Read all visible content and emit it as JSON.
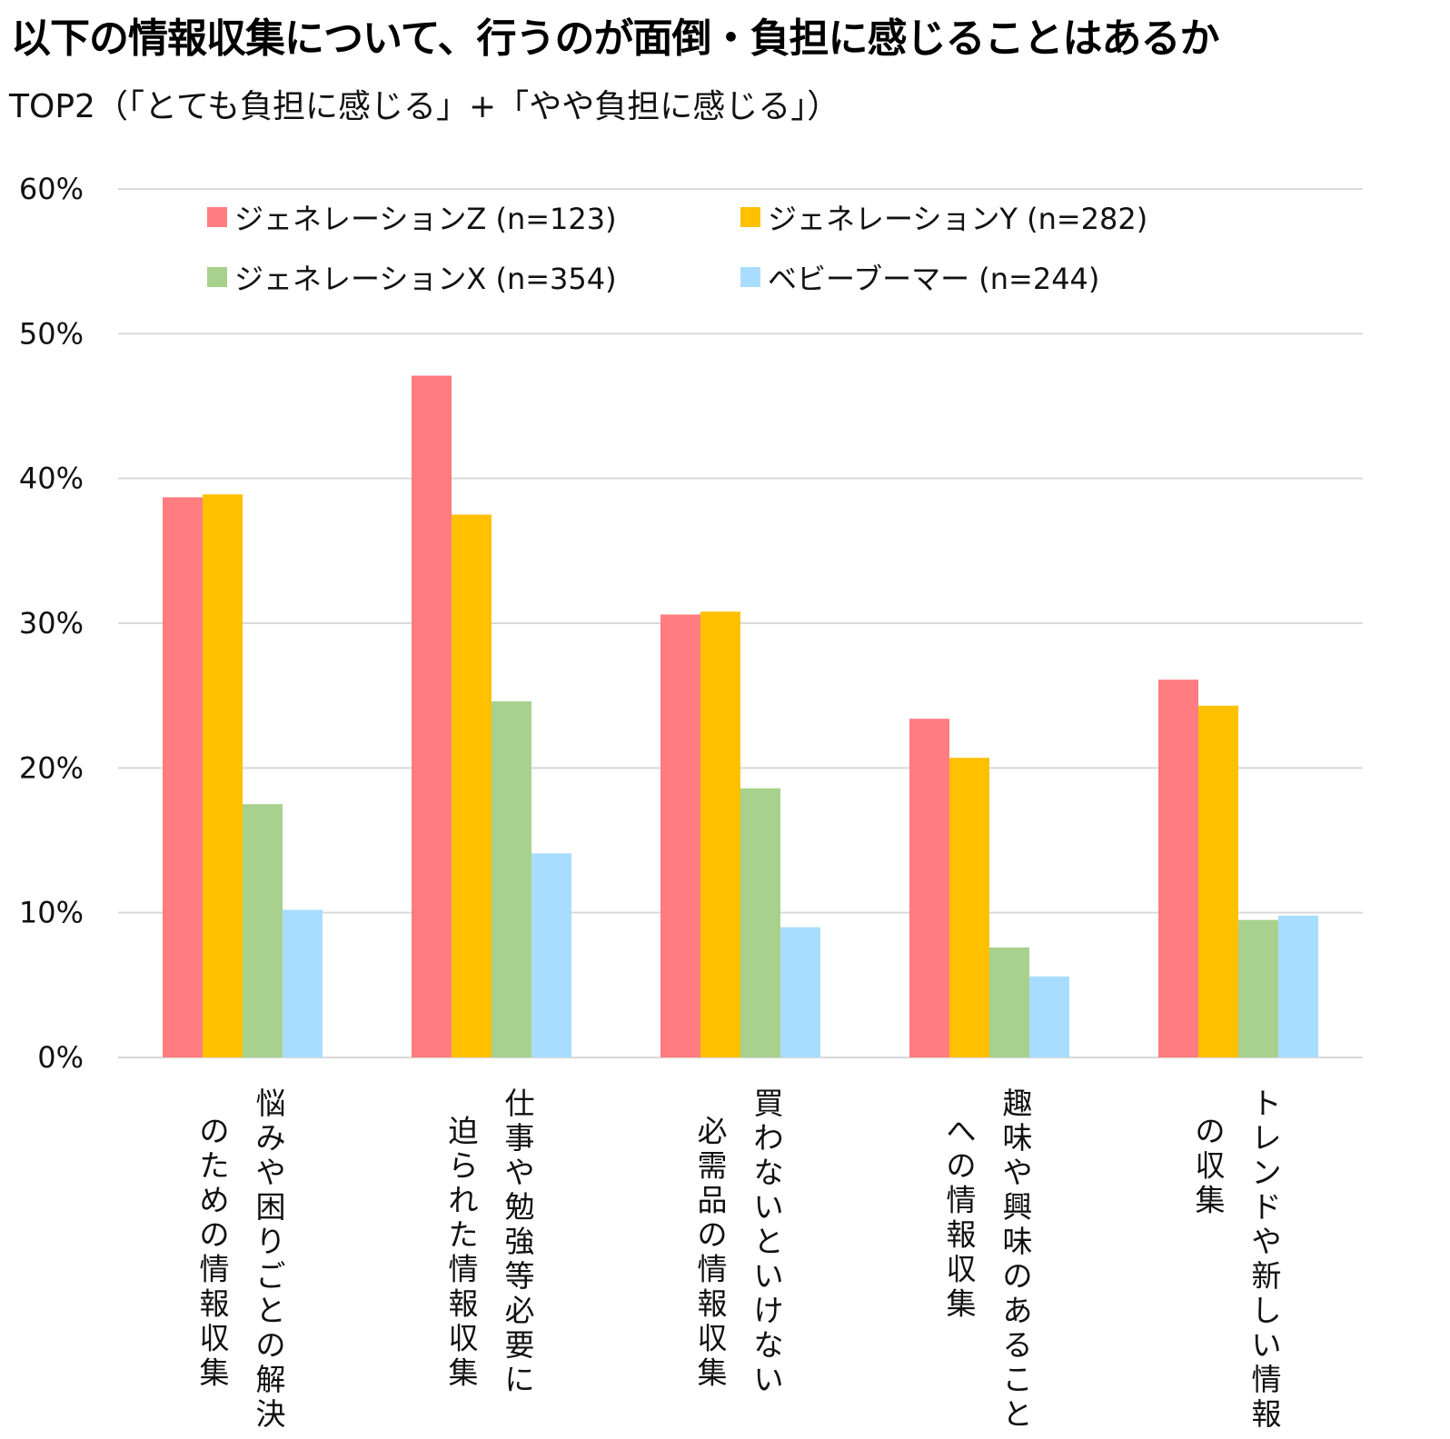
{
  "title": "以下の情報収集について、行うのが面倒・負担に感じることはあるか",
  "subtitle": "TOP2（「とても負担に感じる」+「やや負担に感じる」）",
  "chart_data": {
    "type": "bar",
    "title": "以下の情報収集について、行うのが面倒・負担に感じることはあるか",
    "subtitle": "TOP2（「とても負担に感じる」+「やや負担に感じる」）",
    "xlabel": "",
    "ylabel": "",
    "ylim": [
      0,
      60
    ],
    "yticks": [
      0,
      10,
      20,
      30,
      40,
      50,
      60
    ],
    "ytick_labels": [
      "0%",
      "10%",
      "20%",
      "30%",
      "40%",
      "50%",
      "60%"
    ],
    "grid": true,
    "legend_position": "top",
    "categories": [
      [
        "悩みや困りごとの解決",
        "のための情報収集"
      ],
      [
        "仕事や勉強等必要に",
        "迫られた情報収集"
      ],
      [
        "買わないといけない",
        "必需品の情報収集"
      ],
      [
        "趣味や興味のあること",
        "への情報収集"
      ],
      [
        "トレンドや新しい情報",
        "の収集"
      ]
    ],
    "series": [
      {
        "name": "ジェネレーションZ (n=123)",
        "color": "#FF7C80",
        "values": [
          38.7,
          47.1,
          30.6,
          23.4,
          26.1
        ]
      },
      {
        "name": "ジェネレーションY (n=282)",
        "color": "#FFC000",
        "values": [
          38.9,
          37.5,
          30.8,
          20.7,
          24.3
        ]
      },
      {
        "name": "ジェネレーションX (n=354)",
        "color": "#A9D18E",
        "values": [
          17.5,
          24.6,
          18.6,
          7.6,
          9.5
        ]
      },
      {
        "name": "ベビーブーマー (n=244)",
        "color": "#A9DDFF",
        "values": [
          10.2,
          14.1,
          9.0,
          5.6,
          9.8
        ]
      }
    ]
  }
}
